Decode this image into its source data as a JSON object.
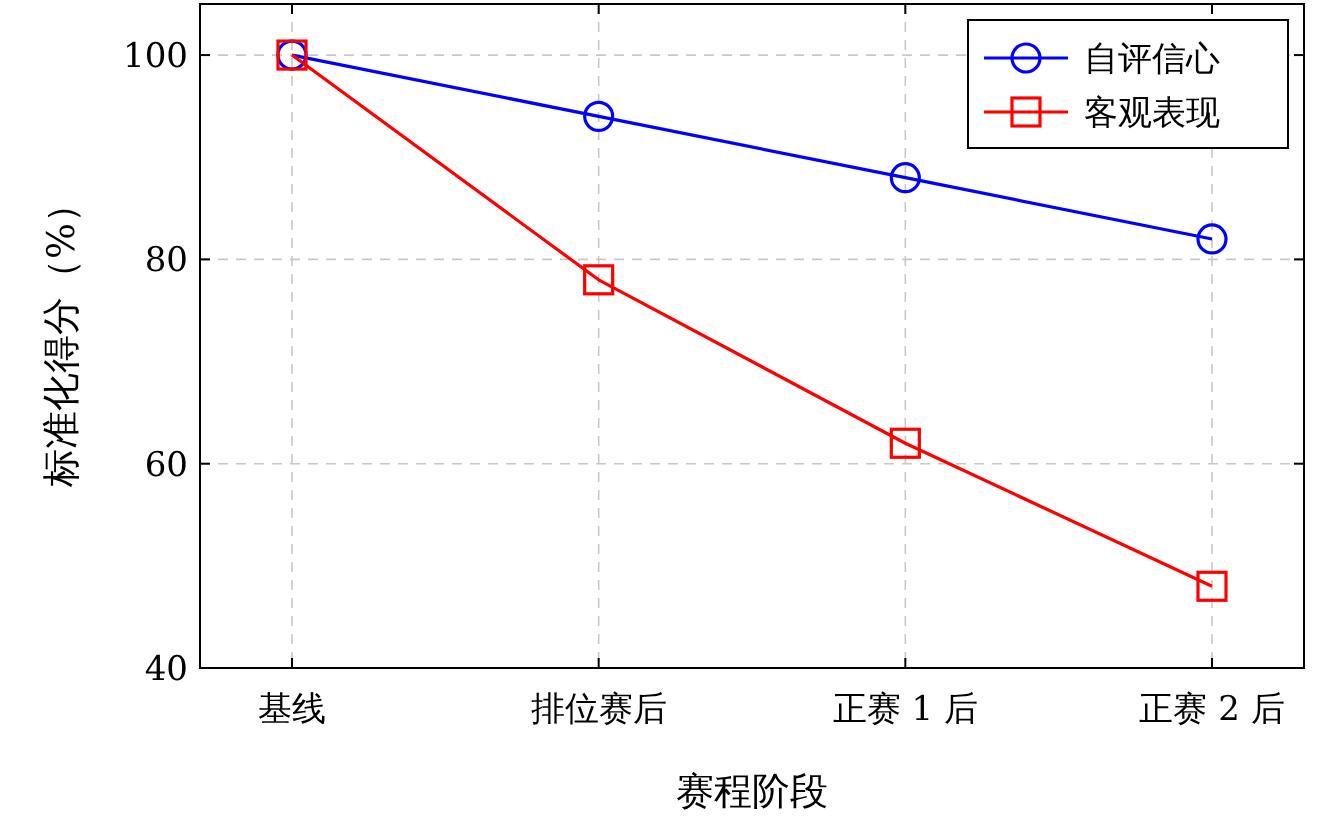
{
  "chart_data": {
    "type": "line",
    "xlabel": "赛程阶段",
    "ylabel": "标准化得分（%）",
    "categories": [
      "基线",
      "排位赛后",
      "正赛 1 后",
      "正赛 2 后"
    ],
    "series": [
      {
        "name": "自评信心",
        "color": "#0000ff",
        "marker": "circle",
        "values": [
          100,
          94,
          88,
          82
        ]
      },
      {
        "name": "客观表现",
        "color": "#ff0000",
        "marker": "square",
        "values": [
          100,
          78,
          62,
          48
        ]
      }
    ],
    "ylim": [
      40,
      105
    ],
    "yticks": [
      40,
      60,
      80,
      100
    ],
    "grid": true,
    "legend": "top right"
  }
}
